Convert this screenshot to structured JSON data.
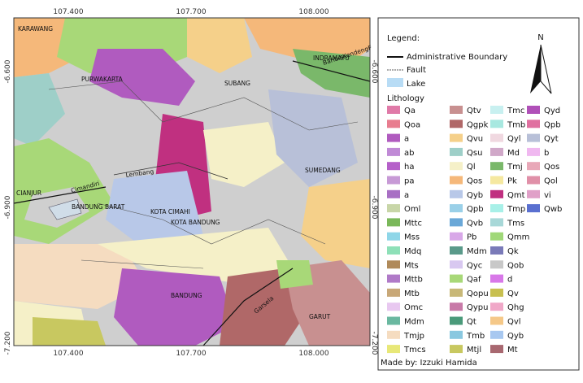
{
  "coordinates": {
    "top": [
      "107.400",
      "107.700",
      "108.000"
    ],
    "bottom": [
      "107.400",
      "107.700",
      "108.000"
    ],
    "left": [
      "-6.600",
      "-6.900",
      "-7.200"
    ],
    "right": [
      "-6.600",
      "-6.900",
      "-7.200"
    ]
  },
  "places": [
    "KARAWANG",
    "PURWAKARTA",
    "SUBANG",
    "INDRAMAYU",
    "SUMEDANG",
    "CIANJUR",
    "BANDUNG BARAT",
    "KOTA CIMAHI",
    "KOTA BANDUNG",
    "BANDUNG",
    "GARUT",
    "Lembang",
    "Cimandiri",
    "BaribisKendengF",
    "Garsela"
  ],
  "legend": {
    "title": "Legend:",
    "north": "N",
    "boundary": "Administrative Boundary",
    "fault": "Fault",
    "lake": "Lake",
    "lithology_title": "Lithology",
    "columns": [
      [
        {
          "label": "Qa",
          "color": "#e07aa8"
        },
        {
          "label": "Qoa",
          "color": "#e87d8f"
        },
        {
          "label": "a",
          "color": "#b05bbf"
        },
        {
          "label": "ab",
          "color": "#c08ad6"
        },
        {
          "label": "ha",
          "color": "#b560c9"
        },
        {
          "label": "pa",
          "color": "#c79ad6"
        },
        {
          "label": "a",
          "color": "#a86fc4"
        },
        {
          "label": "Oml",
          "color": "#c8d6a8"
        },
        {
          "label": "Mttc",
          "color": "#7ab85a"
        },
        {
          "label": "Mss",
          "color": "#8ed6e8"
        },
        {
          "label": "Mdq",
          "color": "#8ee0b8"
        },
        {
          "label": "Mts",
          "color": "#b08a5a"
        },
        {
          "label": "Mttb",
          "color": "#b07ac8"
        },
        {
          "label": "Mtb",
          "color": "#c8a878"
        },
        {
          "label": "Omc",
          "color": "#e8c8f0"
        },
        {
          "label": "Mdm",
          "color": "#6ab8a0"
        },
        {
          "label": "Tmjp",
          "color": "#f5dcc0"
        },
        {
          "label": "Tmcs",
          "color": "#e8e878"
        }
      ],
      [
        {
          "label": "Qtv",
          "color": "#c89090"
        },
        {
          "label": "Qgpk",
          "color": "#b06868"
        },
        {
          "label": "Qvu",
          "color": "#f5d08a"
        },
        {
          "label": "Qsu",
          "color": "#9ecfc8"
        },
        {
          "label": "Ql",
          "color": "#f5f0c8"
        },
        {
          "label": "Qos",
          "color": "#f5b87a"
        },
        {
          "label": "Qyb",
          "color": "#b8c8e8"
        },
        {
          "label": "Qpb",
          "color": "#9ad0e8"
        },
        {
          "label": "Qvb",
          "color": "#6aa8d8"
        },
        {
          "label": "Pb",
          "color": "#d8a8e8"
        },
        {
          "label": "Mdm",
          "color": "#5a9a8a"
        },
        {
          "label": "Qyc",
          "color": "#d8c8f0"
        },
        {
          "label": "Qaf",
          "color": "#a8d878"
        },
        {
          "label": "Qopu",
          "color": "#c8b878"
        },
        {
          "label": "Qypu",
          "color": "#c87aa8"
        },
        {
          "label": "Qt",
          "color": "#4a9a7a"
        },
        {
          "label": "Tmb",
          "color": "#8ac8e0"
        },
        {
          "label": "Mtjl",
          "color": "#c8c860"
        }
      ],
      [
        {
          "label": "Tmc",
          "color": "#c8f0f0"
        },
        {
          "label": "Tmb",
          "color": "#a8e8e0"
        },
        {
          "label": "Qyl",
          "color": "#f0d8e0"
        },
        {
          "label": "Md",
          "color": "#d0a8c8"
        },
        {
          "label": "Tmj",
          "color": "#7ab86a"
        },
        {
          "label": "Pk",
          "color": "#f5e8a0"
        },
        {
          "label": "Qmt",
          "color": "#c03080"
        },
        {
          "label": "Tmp",
          "color": "#a8f0e8"
        },
        {
          "label": "Tms",
          "color": "#a8d8d8"
        },
        {
          "label": "Qmm",
          "color": "#a0d878"
        },
        {
          "label": "Qk",
          "color": "#7a7ab8"
        },
        {
          "label": "Qob",
          "color": "#c8c8c8"
        },
        {
          "label": "d",
          "color": "#d878e8"
        },
        {
          "label": "Qv",
          "color": "#c8c050"
        },
        {
          "label": "Qhg",
          "color": "#f0a8c8"
        },
        {
          "label": "Qvl",
          "color": "#f5c888"
        },
        {
          "label": "Qyb",
          "color": "#a8c8f0"
        },
        {
          "label": "Mt",
          "color": "#a86870"
        }
      ],
      [
        {
          "label": "Qyd",
          "color": "#b050b8"
        },
        {
          "label": "Qpb",
          "color": "#e070a0"
        },
        {
          "label": "Qyt",
          "color": "#b8c0d8"
        },
        {
          "label": "b",
          "color": "#f0b8f0"
        },
        {
          "label": "Qos",
          "color": "#e8a8b8"
        },
        {
          "label": "Qol",
          "color": "#e090a8"
        },
        {
          "label": "vi",
          "color": "#e0a0c8"
        },
        {
          "label": "Qwb",
          "color": "#5a70d0"
        }
      ]
    ],
    "credit": "Made by: Izzuki Hamida"
  }
}
